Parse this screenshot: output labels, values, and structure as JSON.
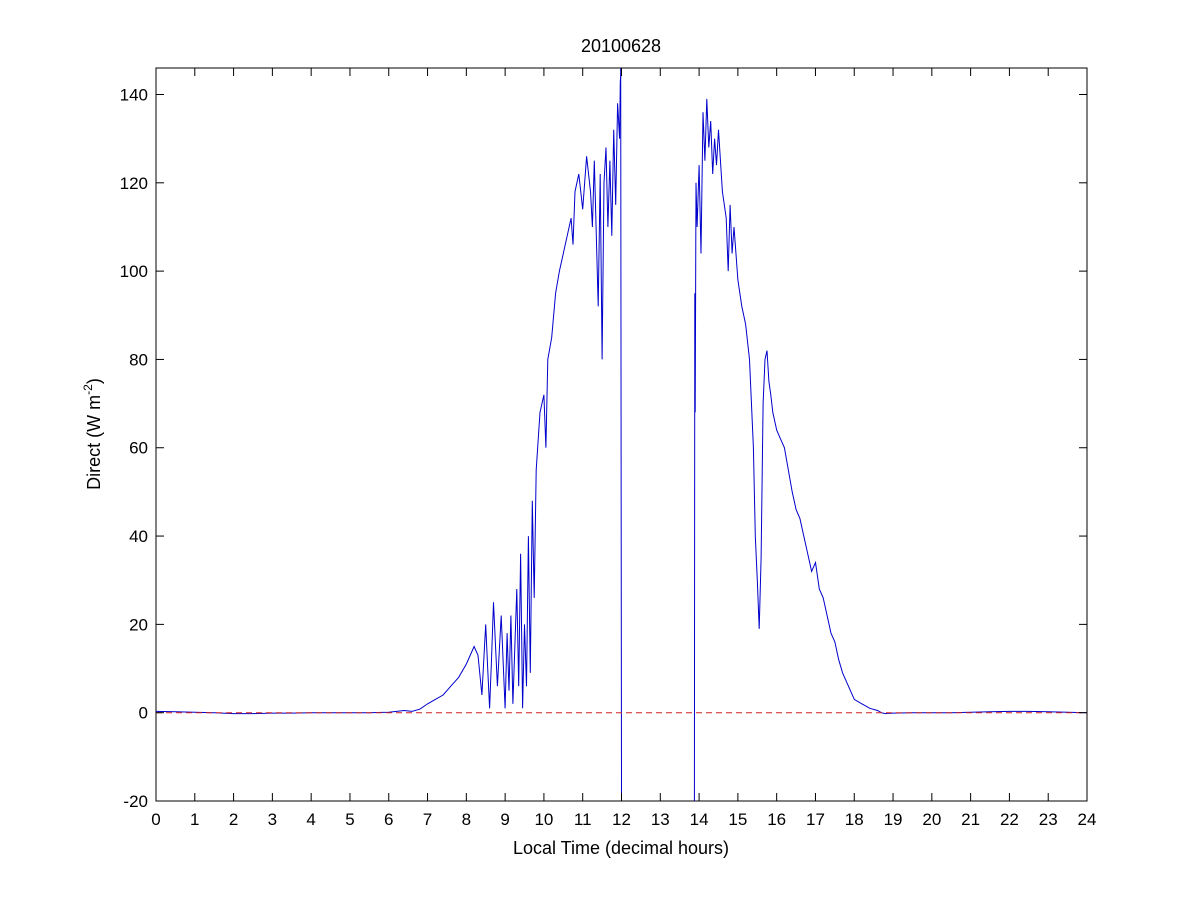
{
  "chart_data": {
    "type": "line",
    "title": "20100628",
    "xlabel": "Local Time (decimal hours)",
    "ylabel": {
      "main": "Direct (W m",
      "superscript": "-2",
      "close": ")"
    },
    "xlim": [
      0,
      24
    ],
    "ylim": [
      -20,
      146
    ],
    "xticks": [
      0,
      1,
      2,
      3,
      4,
      5,
      6,
      7,
      8,
      9,
      10,
      11,
      12,
      13,
      14,
      15,
      16,
      17,
      18,
      19,
      20,
      21,
      22,
      23,
      24
    ],
    "xtick_labels": [
      "0",
      "1",
      "2",
      "3",
      "4",
      "5",
      "6",
      "7",
      "8",
      "9",
      "10",
      "11",
      "12",
      "13",
      "14",
      "15",
      "16",
      "17",
      "18",
      "19",
      "20",
      "21",
      "22",
      "23",
      "24"
    ],
    "yticks": [
      -20,
      0,
      20,
      40,
      60,
      80,
      100,
      120,
      140
    ],
    "ytick_labels": [
      "-20",
      "0",
      "20",
      "40",
      "60",
      "80",
      "100",
      "120",
      "140"
    ],
    "grid": false,
    "legend": "none",
    "series": [
      {
        "color": "#0000cc",
        "style": "solid",
        "x": [
          0,
          0.5,
          1,
          1.5,
          2,
          2.5,
          3,
          3.5,
          4,
          4.5,
          5,
          5.5,
          6,
          6.2,
          6.4,
          6.6,
          6.8,
          7.0,
          7.2,
          7.4,
          7.6,
          7.8,
          8.0,
          8.2,
          8.3,
          8.4,
          8.5,
          8.55,
          8.6,
          8.65,
          8.7,
          8.8,
          8.9,
          9.0,
          9.05,
          9.1,
          9.15,
          9.2,
          9.3,
          9.35,
          9.4,
          9.45,
          9.5,
          9.55,
          9.6,
          9.65,
          9.7,
          9.75,
          9.8,
          9.9,
          10.0,
          10.05,
          10.1,
          10.2,
          10.3,
          10.4,
          10.5,
          10.6,
          10.7,
          10.75,
          10.8,
          10.9,
          11.0,
          11.1,
          11.2,
          11.25,
          11.3,
          11.4,
          11.45,
          11.5,
          11.55,
          11.6,
          11.65,
          11.7,
          11.75,
          11.8,
          11.85,
          11.9,
          11.95,
          11.97,
          12.0
        ],
        "y": [
          0.3,
          0.2,
          0.1,
          0,
          -0.2,
          -0.2,
          -0.1,
          -0.1,
          0,
          0,
          0,
          0,
          0.1,
          0.3,
          0.5,
          0.3,
          0.8,
          2,
          3,
          4,
          6,
          8,
          11,
          15,
          13,
          4,
          20,
          10,
          1,
          12,
          25,
          6,
          22,
          1,
          18,
          5,
          22,
          2,
          28,
          6,
          36,
          1,
          20,
          6,
          40,
          9,
          48,
          26,
          55,
          68,
          72,
          60,
          80,
          85,
          95,
          100,
          104,
          108,
          112,
          106,
          118,
          122,
          114,
          126,
          118,
          110,
          125,
          92,
          122,
          80,
          120,
          128,
          110,
          125,
          108,
          132,
          115,
          138,
          130,
          143,
          146
        ]
      },
      {
        "color": "#0000cc",
        "style": "solid",
        "x": [
          11.98,
          11.99,
          12.0
        ],
        "y": [
          146,
          60,
          -20
        ]
      },
      {
        "color": "#0000cc",
        "style": "solid",
        "x": [
          13.88,
          13.89,
          13.9,
          13.92,
          13.95,
          14.0,
          14.05,
          14.1,
          14.15,
          14.2,
          14.25,
          14.3,
          14.35,
          14.4,
          14.45,
          14.5,
          14.6,
          14.7,
          14.75,
          14.8,
          14.85,
          14.9,
          15.0,
          15.1,
          15.2,
          15.3,
          15.4,
          15.45,
          15.5,
          15.55,
          15.6,
          15.65,
          15.7,
          15.75,
          15.8,
          15.85,
          15.9,
          16.0,
          16.1,
          16.2,
          16.3,
          16.4,
          16.5,
          16.6,
          16.7,
          16.8,
          16.9,
          17.0,
          17.1,
          17.2,
          17.3,
          17.4,
          17.5,
          17.6,
          17.7,
          17.8,
          17.9,
          18.0,
          18.2,
          18.4,
          18.6,
          18.7,
          18.8,
          19.0,
          19.5,
          20,
          20.5,
          21,
          21.5,
          22,
          22.5,
          23,
          23.5,
          24
        ],
        "y": [
          -20,
          95,
          68,
          120,
          110,
          124,
          104,
          136,
          125,
          139,
          128,
          134,
          122,
          130,
          124,
          132,
          118,
          112,
          100,
          115,
          104,
          110,
          98,
          92,
          88,
          80,
          60,
          40,
          30,
          19,
          35,
          70,
          80,
          82,
          75,
          72,
          68,
          64,
          62,
          60,
          55,
          50,
          46,
          44,
          40,
          36,
          32,
          34,
          28,
          26,
          22,
          18,
          16,
          12,
          9,
          7,
          5,
          3,
          2,
          1,
          0.5,
          0,
          -0.2,
          -0.1,
          0,
          0,
          0,
          0.1,
          0.2,
          0.3,
          0.3,
          0.2,
          0.1,
          0
        ]
      },
      {
        "color": "#cc2222",
        "style": "dashed",
        "x": [
          0,
          24
        ],
        "y": [
          0,
          0
        ]
      }
    ]
  }
}
